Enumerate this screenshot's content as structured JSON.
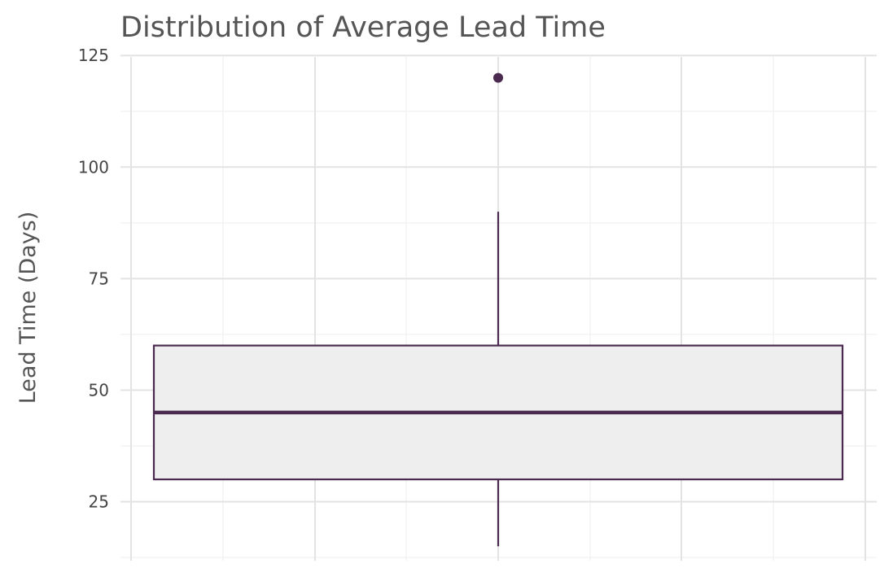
{
  "chart_data": {
    "type": "boxplot",
    "title": "Distribution of Average Lead Time",
    "xlabel": "",
    "ylabel": "Lead Time (Days)",
    "ylim": [
      12.5,
      126.5
    ],
    "yticks": [
      25,
      50,
      75,
      100,
      125
    ],
    "grid": true,
    "box": {
      "whisker_low": 15,
      "q1": 30,
      "median": 45,
      "q3": 60,
      "whisker_high": 90,
      "outliers": [
        120
      ]
    },
    "colors": {
      "stroke": "#4a2a4e",
      "box_fill": "#eeeeee",
      "grid_major": "#e3e3e3",
      "grid_minor": "#f3f3f3"
    }
  }
}
